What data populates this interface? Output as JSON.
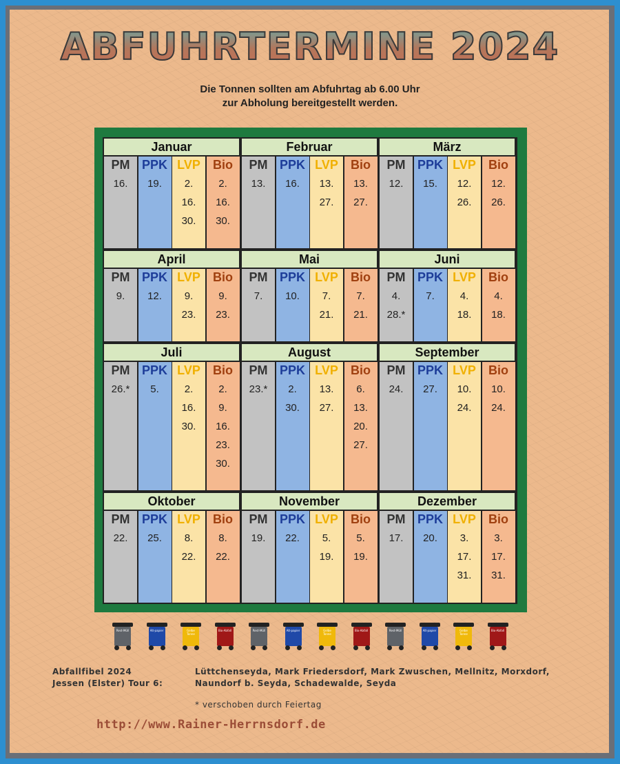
{
  "title": "ABFUHRTERMINE 2024",
  "subtitle_line1": "Die Tonnen sollten am Abfuhrtag ab 6.00 Uhr",
  "subtitle_line2": "zur Abholung bereitgestellt werden.",
  "column_labels": [
    "PM",
    "PPK",
    "LVP",
    "Bio"
  ],
  "months": [
    {
      "name": "Januar",
      "cols": [
        [
          "16."
        ],
        [
          "19."
        ],
        [
          "2.",
          "16.",
          "30."
        ],
        [
          "2.",
          "16.",
          "30."
        ]
      ]
    },
    {
      "name": "Februar",
      "cols": [
        [
          "13."
        ],
        [
          "16."
        ],
        [
          "13.",
          "27."
        ],
        [
          "13.",
          "27."
        ]
      ]
    },
    {
      "name": "März",
      "cols": [
        [
          "12."
        ],
        [
          "15."
        ],
        [
          "12.",
          "26."
        ],
        [
          "12.",
          "26."
        ]
      ]
    },
    {
      "name": "April",
      "cols": [
        [
          "9."
        ],
        [
          "12."
        ],
        [
          "9.",
          "23."
        ],
        [
          "9.",
          "23."
        ]
      ]
    },
    {
      "name": "Mai",
      "cols": [
        [
          "7."
        ],
        [
          "10."
        ],
        [
          "7.",
          "21."
        ],
        [
          "7.",
          "21."
        ]
      ]
    },
    {
      "name": "Juni",
      "cols": [
        [
          "4.",
          "28.*"
        ],
        [
          "7."
        ],
        [
          "4.",
          "18."
        ],
        [
          "4.",
          "18."
        ]
      ]
    },
    {
      "name": "Juli",
      "cols": [
        [
          "26.*"
        ],
        [
          "5."
        ],
        [
          "2.",
          "16.",
          "30."
        ],
        [
          "2.",
          "9.",
          "16.",
          "23.",
          "30."
        ]
      ]
    },
    {
      "name": "August",
      "cols": [
        [
          "23.*"
        ],
        [
          "2.",
          "30."
        ],
        [
          "13.",
          "27."
        ],
        [
          "6.",
          "13.",
          "20.",
          "27."
        ]
      ]
    },
    {
      "name": "September",
      "cols": [
        [
          "24."
        ],
        [
          "27."
        ],
        [
          "10.",
          "24."
        ],
        [
          "10.",
          "24."
        ]
      ]
    },
    {
      "name": "Oktober",
      "cols": [
        [
          "22."
        ],
        [
          "25."
        ],
        [
          "8.",
          "22."
        ],
        [
          "8.",
          "22."
        ]
      ]
    },
    {
      "name": "November",
      "cols": [
        [
          "19."
        ],
        [
          "22."
        ],
        [
          "5.",
          "19."
        ],
        [
          "5.",
          "19."
        ]
      ]
    },
    {
      "name": "Dezember",
      "cols": [
        [
          "17."
        ],
        [
          "20."
        ],
        [
          "3.",
          "17.",
          "31."
        ],
        [
          "3.",
          "17.",
          "31."
        ]
      ]
    }
  ],
  "bins": [
    {
      "label": "Rest-Müll",
      "color": "#5f6368"
    },
    {
      "label": "Alt-papier",
      "color": "#1f49a8"
    },
    {
      "label": "Gelbe Tonne",
      "color": "#f0b90b"
    },
    {
      "label": "Bio-Abfall",
      "color": "#a01818"
    }
  ],
  "footer": {
    "line1_left": "Abfallfibel 2024",
    "line2_left": "Jessen (Elster) Tour 6:",
    "places_line1": "Lüttchenseyda, Mark Friedersdorf, Mark Zwuschen, Mellnitz, Morxdorf,",
    "places_line2": "Naundorf b. Seyda, Schadewalde, Seyda",
    "note": "* verschoben durch Feiertag",
    "link": "http://www.Rainer-Herrnsdorf.de"
  }
}
